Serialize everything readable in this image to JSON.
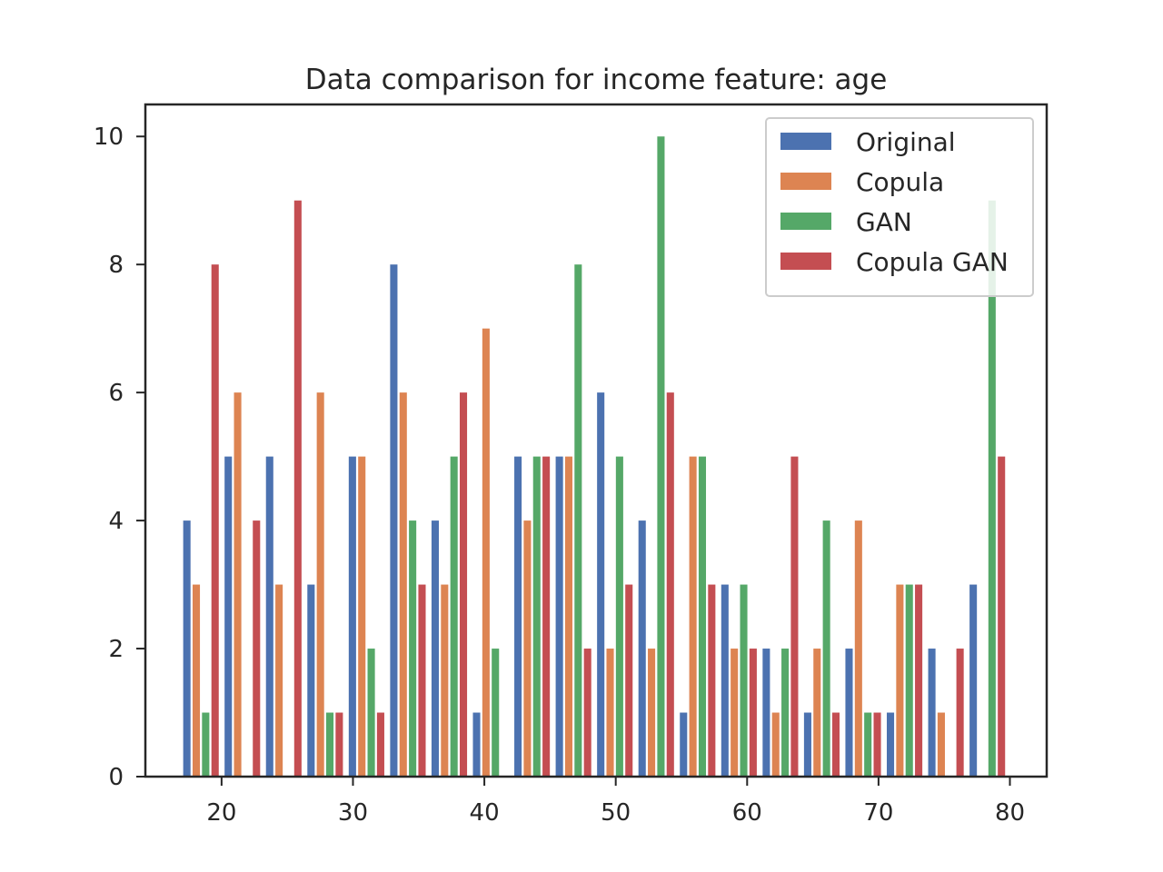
{
  "chart_data": {
    "type": "bar",
    "title": "Data comparison for income feature: age",
    "xlabel": "",
    "ylabel": "",
    "xlim": [
      14.2,
      82.8
    ],
    "ylim": [
      0,
      10.5
    ],
    "xticks": [
      20,
      30,
      40,
      50,
      60,
      70,
      80
    ],
    "yticks": [
      0,
      2,
      4,
      6,
      8,
      10
    ],
    "grid": false,
    "legend_position": "top-right",
    "bin_starts": [
      17.0,
      20.15,
      23.3,
      26.45,
      29.6,
      32.75,
      35.9,
      39.05,
      42.2,
      45.35,
      48.5,
      51.65,
      54.8,
      57.95,
      61.1,
      64.25,
      67.4,
      70.55,
      73.7,
      76.85
    ],
    "bin_width": 3.15,
    "series": [
      {
        "name": "Original",
        "color": "#4c72b0",
        "values": [
          4,
          5,
          5,
          3,
          5,
          8,
          4,
          1,
          5,
          5,
          6,
          4,
          1,
          3,
          2,
          1,
          2,
          1,
          2,
          3
        ]
      },
      {
        "name": "Copula",
        "color": "#dd8452",
        "values": [
          3,
          6,
          3,
          6,
          5,
          6,
          3,
          7,
          4,
          5,
          2,
          2,
          5,
          2,
          1,
          2,
          4,
          3,
          1,
          0
        ]
      },
      {
        "name": "GAN",
        "color": "#55a868",
        "values": [
          1,
          0,
          0,
          1,
          2,
          4,
          5,
          2,
          5,
          8,
          5,
          10,
          5,
          3,
          2,
          4,
          1,
          3,
          0,
          9
        ]
      },
      {
        "name": "Copula GAN",
        "color": "#c44e52",
        "values": [
          8,
          4,
          9,
          1,
          1,
          3,
          6,
          0,
          5,
          2,
          3,
          6,
          3,
          2,
          5,
          1,
          1,
          3,
          2,
          5
        ]
      }
    ]
  }
}
